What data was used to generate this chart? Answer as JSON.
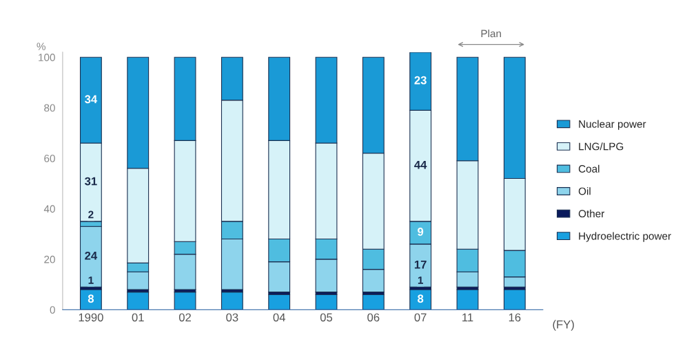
{
  "chart_data": {
    "type": "bar",
    "stacked": true,
    "ylabel": "%",
    "xlabel": "(FY)",
    "categories": [
      "1990",
      "01",
      "02",
      "03",
      "04",
      "05",
      "06",
      "07",
      "11",
      "16"
    ],
    "ylim": [
      0,
      102
    ],
    "yticks": [
      0,
      20,
      40,
      60,
      80,
      100
    ],
    "grid": false,
    "legend": "right",
    "annotations": [
      "Plan"
    ],
    "series": [
      {
        "name": "Hydroelectric power",
        "color": "#18a0e0",
        "values": [
          8,
          7,
          7,
          7,
          6,
          6,
          6,
          8,
          8,
          8
        ],
        "value_labels": [
          "8",
          null,
          null,
          null,
          null,
          null,
          null,
          "8",
          null,
          null
        ]
      },
      {
        "name": "Other",
        "color": "#0a1a5c",
        "values": [
          1,
          1,
          1,
          1,
          1,
          1,
          1,
          1,
          1,
          1
        ],
        "value_labels": [
          "1",
          null,
          null,
          null,
          null,
          null,
          null,
          "1",
          null,
          null
        ]
      },
      {
        "name": "Oil",
        "color": "#8ed4ec",
        "values": [
          24,
          7,
          14,
          20,
          12,
          13,
          9,
          17,
          6,
          4
        ],
        "value_labels": [
          "24",
          null,
          null,
          null,
          null,
          null,
          null,
          "17",
          null,
          null
        ]
      },
      {
        "name": "Coal",
        "color": "#4fbde0",
        "values": [
          2,
          3.5,
          5,
          7,
          9,
          8,
          8,
          9,
          9,
          10.5
        ],
        "value_labels": [
          "2",
          null,
          null,
          null,
          null,
          null,
          null,
          "9",
          null,
          null
        ]
      },
      {
        "name": "LNG/LPG",
        "color": "#d6f2f8",
        "values": [
          31,
          37.5,
          40,
          48,
          39,
          38,
          38,
          44,
          35,
          28.5
        ],
        "value_labels": [
          "31",
          null,
          null,
          null,
          null,
          null,
          null,
          "44",
          null,
          null
        ]
      },
      {
        "name": "Nuclear power",
        "color": "#1a9ad6",
        "values": [
          34,
          44,
          33,
          17,
          33,
          34,
          38,
          23,
          41,
          48
        ],
        "value_labels": [
          "34",
          null,
          null,
          null,
          null,
          null,
          null,
          "23",
          null,
          null
        ]
      }
    ]
  }
}
